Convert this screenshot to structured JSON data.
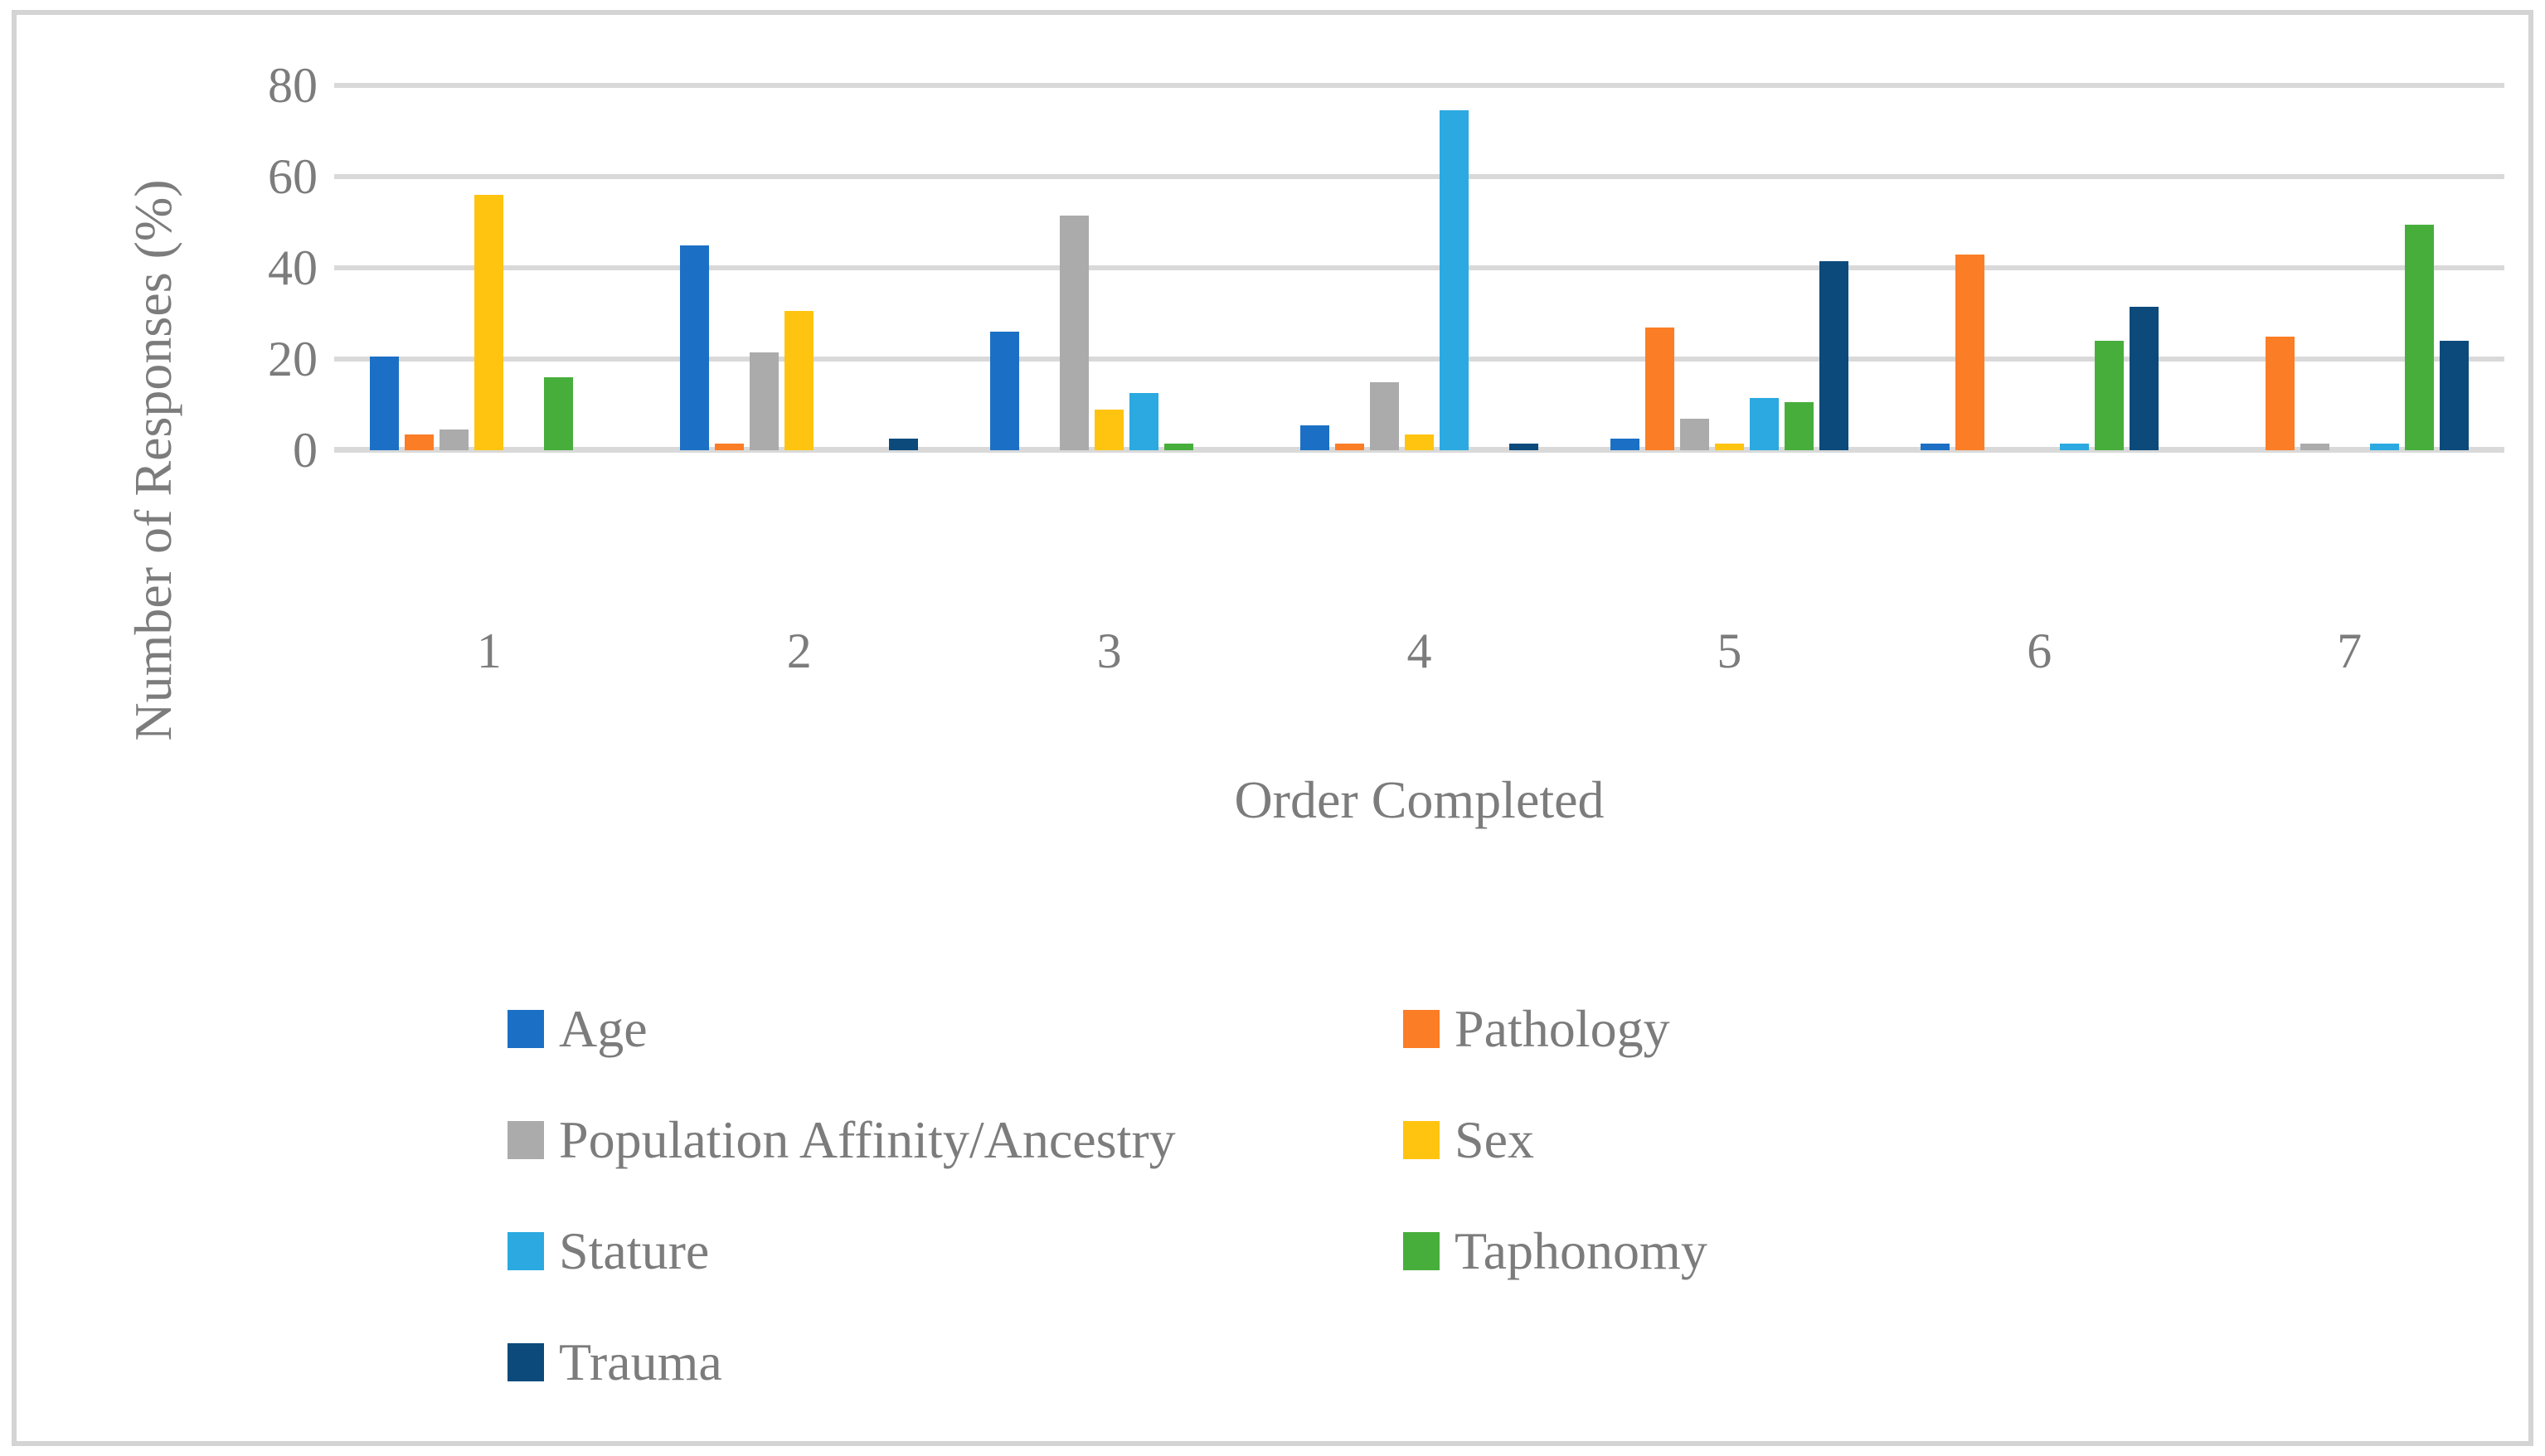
{
  "figure": {
    "background": "#ffffff",
    "border_color": "#d4d4d4"
  },
  "colors": {
    "gridline": "#d9d9d9",
    "axis_text": "#7c7c7c"
  },
  "chart_data": {
    "type": "bar",
    "title": "",
    "xlabel": "Order Completed",
    "ylabel": "Number of Responses (%)",
    "categories": [
      "1",
      "2",
      "3",
      "4",
      "5",
      "6",
      "7"
    ],
    "yticks": [
      0,
      20,
      40,
      60,
      80
    ],
    "ylim": [
      0,
      80
    ],
    "grid": "horizontal",
    "legend_position": "below-plot, two columns, order: Age, Pathology, Population Affinity/Ancestry, Sex, Stature, Taphonomy, Trauma",
    "series": [
      {
        "name": "Age",
        "color": "#1b70c5",
        "values": [
          20.5,
          45,
          26,
          5.5,
          2.5,
          1.5,
          0
        ]
      },
      {
        "name": "Pathology",
        "color": "#fb7d26",
        "values": [
          3.5,
          1.5,
          0,
          1.5,
          27,
          43,
          25
        ]
      },
      {
        "name": "Population Affinity/Ancestry",
        "color": "#ababab",
        "values": [
          4.5,
          21.5,
          51.5,
          15,
          7,
          0,
          1.5
        ]
      },
      {
        "name": "Sex",
        "color": "#ffc410",
        "values": [
          56,
          30.5,
          9,
          3.5,
          1.5,
          0,
          0
        ]
      },
      {
        "name": "Stature",
        "color": "#2ba9e0",
        "values": [
          0,
          0,
          12.5,
          74.5,
          11.5,
          1.5,
          1.5
        ]
      },
      {
        "name": "Taphonomy",
        "color": "#47ae3c",
        "values": [
          16,
          0,
          1.5,
          0,
          10.5,
          24,
          49.5
        ]
      },
      {
        "name": "Trauma",
        "color": "#0b4a7b",
        "values": [
          0,
          2.5,
          0,
          1.5,
          41.5,
          31.5,
          24
        ]
      }
    ]
  }
}
